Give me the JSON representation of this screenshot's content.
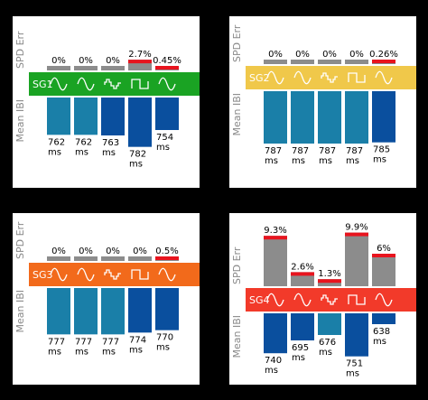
{
  "chart_data": [
    {
      "type": "bar",
      "band_label": "SG1",
      "band_color": "#1aa323",
      "band_text_color": "#ffffff",
      "ylabel_top": "SPD Err",
      "ylabel_bottom": "Mean IBI",
      "bar_color_top": "#8c8c8c",
      "error_color": "#e8141e",
      "top_ylim": [
        0,
        10
      ],
      "bottom_ylim": [
        700,
        790
      ],
      "columns": [
        {
          "waveform": "sine",
          "spd_err": 0,
          "spd_label": "0%",
          "ibi": 762,
          "ibi_label": "762",
          "unit": "ms",
          "color": "#1a7fa8"
        },
        {
          "waveform": "sine",
          "spd_err": 0,
          "spd_label": "0%",
          "ibi": 762,
          "ibi_label": "762",
          "unit": "ms",
          "color": "#1a7fa8"
        },
        {
          "waveform": "stepped-sine",
          "spd_err": 0,
          "spd_label": "0%",
          "ibi": 763,
          "ibi_label": "763",
          "unit": "ms",
          "color": "#0a4f9e"
        },
        {
          "waveform": "square",
          "spd_err": 2.7,
          "spd_label": "2.7%",
          "ibi": 782,
          "ibi_label": "782",
          "unit": "ms",
          "color": "#0a4f9e"
        },
        {
          "waveform": "sine",
          "spd_err": 0.45,
          "spd_label": "0.45%",
          "ibi": 754,
          "ibi_label": "754",
          "unit": "ms",
          "color": "#0a4f9e"
        }
      ]
    },
    {
      "type": "bar",
      "band_label": "SG2",
      "band_color": "#f0c84a",
      "band_text_color": "#ffffff",
      "ylabel_top": "SPD Err",
      "ylabel_bottom": "Mean IBI",
      "bar_color_top": "#8c8c8c",
      "error_color": "#e8141e",
      "top_ylim": [
        0,
        10
      ],
      "bottom_ylim": [
        700,
        790
      ],
      "columns": [
        {
          "waveform": "sine",
          "spd_err": 0,
          "spd_label": "0%",
          "ibi": 787,
          "ibi_label": "787",
          "unit": "ms",
          "color": "#1a7fa8"
        },
        {
          "waveform": "sine",
          "spd_err": 0,
          "spd_label": "0%",
          "ibi": 787,
          "ibi_label": "787",
          "unit": "ms",
          "color": "#1a7fa8"
        },
        {
          "waveform": "stepped-sine",
          "spd_err": 0,
          "spd_label": "0%",
          "ibi": 787,
          "ibi_label": "787",
          "unit": "ms",
          "color": "#1a7fa8"
        },
        {
          "waveform": "square",
          "spd_err": 0,
          "spd_label": "0%",
          "ibi": 787,
          "ibi_label": "787",
          "unit": "ms",
          "color": "#1a7fa8"
        },
        {
          "waveform": "sine",
          "spd_err": 0.26,
          "spd_label": "0.26%",
          "ibi": 785,
          "ibi_label": "785",
          "unit": "ms",
          "color": "#0a4f9e"
        }
      ]
    },
    {
      "type": "bar",
      "band_label": "SG3",
      "band_color": "#f26a1b",
      "band_text_color": "#ffffff",
      "ylabel_top": "SPD Err",
      "ylabel_bottom": "Mean IBI",
      "bar_color_top": "#8c8c8c",
      "error_color": "#e8141e",
      "top_ylim": [
        0,
        10
      ],
      "bottom_ylim": [
        700,
        790
      ],
      "columns": [
        {
          "waveform": "sine",
          "spd_err": 0,
          "spd_label": "0%",
          "ibi": 777,
          "ibi_label": "777",
          "unit": "ms",
          "color": "#1a7fa8"
        },
        {
          "waveform": "sine",
          "spd_err": 0,
          "spd_label": "0%",
          "ibi": 777,
          "ibi_label": "777",
          "unit": "ms",
          "color": "#1a7fa8"
        },
        {
          "waveform": "stepped-sine",
          "spd_err": 0,
          "spd_label": "0%",
          "ibi": 777,
          "ibi_label": "777",
          "unit": "ms",
          "color": "#1a7fa8"
        },
        {
          "waveform": "square",
          "spd_err": 0,
          "spd_label": "0%",
          "ibi": 774,
          "ibi_label": "774",
          "unit": "ms",
          "color": "#0a4f9e"
        },
        {
          "waveform": "sine",
          "spd_err": 0.5,
          "spd_label": "0.5%",
          "ibi": 770,
          "ibi_label": "770",
          "unit": "ms",
          "color": "#0a4f9e"
        }
      ]
    },
    {
      "type": "bar",
      "band_label": "SG4",
      "band_color": "#f23a2a",
      "band_text_color": "#ffffff",
      "ylabel_top": "SPD Err",
      "ylabel_bottom": "Mean IBI",
      "bar_color_top": "#8c8c8c",
      "error_color": "#e8141e",
      "top_ylim": [
        0,
        10
      ],
      "bottom_ylim": [
        600,
        790
      ],
      "columns": [
        {
          "waveform": "sine",
          "spd_err": 9.3,
          "spd_label": "9.3%",
          "ibi": 740,
          "ibi_label": "740",
          "unit": "ms",
          "color": "#0a4f9e"
        },
        {
          "waveform": "sine",
          "spd_err": 2.6,
          "spd_label": "2.6%",
          "ibi": 695,
          "ibi_label": "695",
          "unit": "ms",
          "color": "#0a4f9e"
        },
        {
          "waveform": "stepped-sine",
          "spd_err": 1.3,
          "spd_label": "1.3%",
          "ibi": 676,
          "ibi_label": "676",
          "unit": "ms",
          "color": "#1a7fa8"
        },
        {
          "waveform": "square",
          "spd_err": 9.9,
          "spd_label": "9.9%",
          "ibi": 751,
          "ibi_label": "751",
          "unit": "ms",
          "color": "#0a4f9e"
        },
        {
          "waveform": "sine",
          "spd_err": 6,
          "spd_label": "6%",
          "ibi": 638,
          "ibi_label": "638",
          "unit": "ms",
          "color": "#0a4f9e"
        }
      ]
    }
  ]
}
